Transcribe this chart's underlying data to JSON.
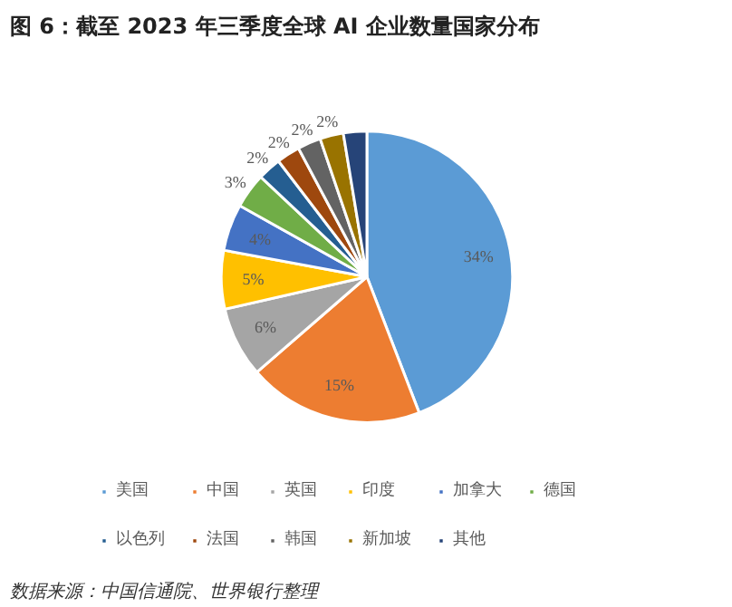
{
  "chart_data": {
    "type": "pie",
    "title": "图 6：截至 2023 年三季度全球 AI 企业数量国家分布",
    "categories": [
      "美国",
      "中国",
      "英国",
      "印度",
      "加拿大",
      "德国",
      "以色列",
      "法国",
      "韩国",
      "新加坡",
      "其他"
    ],
    "values": [
      34,
      15,
      6,
      5,
      4,
      3,
      2,
      2,
      2,
      2,
      2
    ],
    "colors": [
      "#5b9bd5",
      "#ed7d31",
      "#a5a5a5",
      "#ffc000",
      "#4472c4",
      "#70ad47",
      "#255e91",
      "#9e480e",
      "#636363",
      "#997300",
      "#264478"
    ],
    "value_labels": [
      "34%",
      "15%",
      "6%",
      "5%",
      "4%",
      "3%",
      "2%",
      "2%",
      "2%",
      "2%",
      null
    ],
    "legend": "bottom",
    "annotations": [
      "数据来源：中国信通院、世界银行整理"
    ]
  }
}
